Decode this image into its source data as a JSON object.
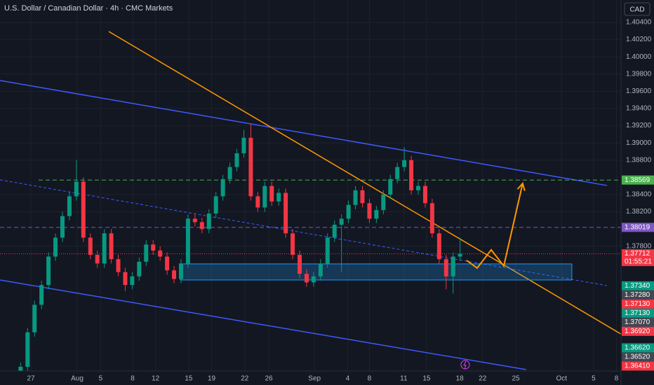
{
  "chart_data": {
    "type": "candlestick",
    "title": "U.S. Dollar / Canadian Dollar · 4h · CMC Markets",
    "currency": "CAD",
    "up_color": "#089981",
    "down_color": "#f23645",
    "xlim": [
      -2.7,
      51.6
    ],
    "ylim": [
      1.36351,
      1.4066
    ],
    "x": [
      -0.9,
      -0.29,
      0.32,
      0.93,
      1.54,
      2.15,
      2.76,
      3.37,
      3.98,
      4.59,
      5.2,
      5.81,
      6.42,
      7.03,
      7.64,
      8.25,
      8.86,
      9.47,
      10.08,
      10.69,
      11.3,
      11.91,
      12.52,
      13.13,
      13.74,
      14.35,
      14.96,
      15.57,
      16.18,
      16.79,
      17.4,
      18.01,
      18.62,
      19.23,
      19.84,
      20.45,
      21.06,
      21.67,
      22.28,
      22.89,
      23.5,
      24.11,
      24.72,
      25.33,
      25.94,
      26.55,
      27.16,
      27.77,
      28.38,
      28.99,
      29.6,
      30.21,
      30.82,
      31.43,
      32.04,
      32.65,
      33.26,
      33.87,
      34.48,
      35.09,
      35.7,
      36.31,
      36.92,
      37.53
    ],
    "open": [
      1.3632,
      1.364,
      1.368,
      1.3712,
      1.3735,
      1.3768,
      1.379,
      1.3815,
      1.3838,
      1.3855,
      1.379,
      1.377,
      1.376,
      1.3795,
      1.3765,
      1.375,
      1.3735,
      1.3745,
      1.3762,
      1.3782,
      1.3775,
      1.3768,
      1.3752,
      1.3742,
      1.376,
      1.3812,
      1.3808,
      1.38,
      1.3818,
      1.3838,
      1.3858,
      1.3872,
      1.3888,
      1.3906,
      1.3838,
      1.3825,
      1.385,
      1.3832,
      1.3842,
      1.3795,
      1.377,
      1.3748,
      1.3738,
      1.3745,
      1.376,
      1.379,
      1.3805,
      1.3812,
      1.3828,
      1.3845,
      1.383,
      1.3812,
      1.3822,
      1.384,
      1.3858,
      1.3872,
      1.388,
      1.3845,
      1.385,
      1.383,
      1.3795,
      1.3765,
      1.3745,
      1.3768
    ],
    "high": [
      1.3645,
      1.3685,
      1.3717,
      1.374,
      1.3773,
      1.3795,
      1.382,
      1.3843,
      1.388,
      1.386,
      1.3795,
      1.3775,
      1.38,
      1.38,
      1.377,
      1.3755,
      1.375,
      1.3767,
      1.3787,
      1.3787,
      1.378,
      1.3773,
      1.3757,
      1.3765,
      1.3817,
      1.3817,
      1.3813,
      1.3823,
      1.3843,
      1.3863,
      1.3877,
      1.3893,
      1.3915,
      1.3922,
      1.3843,
      1.3855,
      1.3855,
      1.3847,
      1.3847,
      1.38,
      1.3775,
      1.3753,
      1.375,
      1.3765,
      1.3795,
      1.381,
      1.3817,
      1.3833,
      1.385,
      1.385,
      1.3835,
      1.3827,
      1.3845,
      1.3863,
      1.3877,
      1.3895,
      1.3885,
      1.3855,
      1.3855,
      1.3835,
      1.38,
      1.377,
      1.3773,
      1.379
    ],
    "low": [
      1.3627,
      1.3635,
      1.3675,
      1.3707,
      1.373,
      1.3763,
      1.3785,
      1.381,
      1.3833,
      1.3785,
      1.3765,
      1.3755,
      1.3755,
      1.376,
      1.3745,
      1.3728,
      1.373,
      1.374,
      1.3757,
      1.377,
      1.3763,
      1.3747,
      1.3737,
      1.3737,
      1.3755,
      1.3803,
      1.3795,
      1.3795,
      1.3813,
      1.3833,
      1.3853,
      1.3867,
      1.3883,
      1.3833,
      1.382,
      1.382,
      1.3827,
      1.3827,
      1.379,
      1.3765,
      1.3743,
      1.3733,
      1.3733,
      1.374,
      1.3755,
      1.3785,
      1.375,
      1.3807,
      1.3823,
      1.3825,
      1.3807,
      1.3807,
      1.3817,
      1.3835,
      1.3853,
      1.3867,
      1.384,
      1.384,
      1.3825,
      1.379,
      1.376,
      1.373,
      1.3725,
      1.3763
    ],
    "close": [
      1.364,
      1.368,
      1.3712,
      1.3735,
      1.3768,
      1.379,
      1.3815,
      1.3838,
      1.3855,
      1.379,
      1.377,
      1.376,
      1.3795,
      1.3765,
      1.375,
      1.3735,
      1.3745,
      1.3762,
      1.3782,
      1.3775,
      1.3768,
      1.3752,
      1.3742,
      1.376,
      1.3812,
      1.3808,
      1.38,
      1.3818,
      1.3838,
      1.3858,
      1.3872,
      1.3888,
      1.3906,
      1.3838,
      1.3825,
      1.385,
      1.3832,
      1.3842,
      1.3795,
      1.377,
      1.3748,
      1.3738,
      1.3745,
      1.376,
      1.379,
      1.3805,
      1.3812,
      1.3828,
      1.3845,
      1.383,
      1.3812,
      1.3822,
      1.384,
      1.3858,
      1.3872,
      1.388,
      1.3845,
      1.385,
      1.383,
      1.3795,
      1.3765,
      1.3745,
      1.3768,
      1.37712
    ],
    "yticks": [
      {
        "value": 1.404,
        "label": "1.40400"
      },
      {
        "value": 1.402,
        "label": "1.40200"
      },
      {
        "value": 1.4,
        "label": "1.40000"
      },
      {
        "value": 1.398,
        "label": "1.39800"
      },
      {
        "value": 1.396,
        "label": "1.39600"
      },
      {
        "value": 1.394,
        "label": "1.39400"
      },
      {
        "value": 1.392,
        "label": "1.39200"
      },
      {
        "value": 1.39,
        "label": "1.39000"
      },
      {
        "value": 1.388,
        "label": "1.38800"
      },
      {
        "value": 1.384,
        "label": "1.38400"
      },
      {
        "value": 1.382,
        "label": "1.38200"
      },
      {
        "value": 1.378,
        "label": "1.37800"
      }
    ],
    "xticks": [
      {
        "value": 0,
        "label": "27"
      },
      {
        "value": 4.05,
        "label": "Aug"
      },
      {
        "value": 6.1,
        "label": "5"
      },
      {
        "value": 8.9,
        "label": "8"
      },
      {
        "value": 10.9,
        "label": "12"
      },
      {
        "value": 13.8,
        "label": "15"
      },
      {
        "value": 15.8,
        "label": "19"
      },
      {
        "value": 18.7,
        "label": "22"
      },
      {
        "value": 20.8,
        "label": "26"
      },
      {
        "value": 24.8,
        "label": "Sep"
      },
      {
        "value": 27.7,
        "label": "4"
      },
      {
        "value": 29.6,
        "label": "8"
      },
      {
        "value": 32.6,
        "label": "11"
      },
      {
        "value": 34.6,
        "label": "15"
      },
      {
        "value": 37.5,
        "label": "18"
      },
      {
        "value": 39.5,
        "label": "22"
      },
      {
        "value": 42.4,
        "label": "25"
      },
      {
        "value": 46.4,
        "label": "Oct"
      },
      {
        "value": 49.2,
        "label": "5"
      },
      {
        "value": 51.2,
        "label": "8"
      }
    ],
    "grid": true,
    "price_tags": [
      {
        "value": 1.38569,
        "label": "1.38569",
        "color": "#4caf50"
      },
      {
        "value": 1.38019,
        "label": "1.38019",
        "color": "#7e57c2"
      },
      {
        "value": 1.37712,
        "label": "1.37712",
        "color": "#f23645",
        "countdown": "01:55:21"
      },
      {
        "value": 1.3734,
        "label": "1.37340",
        "color": "#089981"
      },
      {
        "value": 1.3728,
        "label": "1.37280",
        "color": "#434651"
      },
      {
        "value": 1.3713,
        "label": "1.37130",
        "color": "#f23645"
      },
      {
        "value": 1.3713,
        "label": "1.37130",
        "color": "#089981"
      },
      {
        "value": 1.3707,
        "label": "1.37070",
        "color": "#434651"
      },
      {
        "value": 1.3692,
        "label": "1.36920",
        "color": "#f23645"
      },
      {
        "value": 1.3662,
        "label": "1.36620",
        "color": "#089981"
      },
      {
        "value": 1.3652,
        "label": "1.36520",
        "color": "#434651"
      },
      {
        "value": 1.3641,
        "label": "1.36410",
        "color": "#f23645"
      }
    ],
    "drawings": [
      {
        "kind": "line",
        "color": "#3d5afe",
        "points": [
          [
            -2.7,
            1.39725
          ],
          [
            50.37,
            1.38506
          ]
        ]
      },
      {
        "kind": "line",
        "color": "#3d5afe",
        "points": [
          [
            -2.7,
            1.37408
          ],
          [
            43.31,
            1.36367
          ]
        ]
      },
      {
        "kind": "line",
        "color": "#ff9800",
        "points": [
          [
            6.81,
            1.40294
          ],
          [
            54.48,
            1.36554
          ]
        ]
      },
      {
        "kind": "dashed",
        "color": "#3d5afe",
        "points": [
          [
            -2.7,
            1.38571
          ],
          [
            50.37,
            1.37343
          ]
        ]
      },
      {
        "kind": "rect",
        "color": "#2196f3",
        "points": [
          [
            13.07,
            1.37595
          ],
          [
            47.3,
            1.37408
          ]
        ]
      },
      {
        "kind": "hline",
        "color": "#4caf50",
        "points": [
          [
            0.67,
            1.38569
          ]
        ]
      },
      {
        "kind": "hline",
        "color": "#7e57c2",
        "points": [
          [
            -2.7,
            1.38019
          ]
        ]
      },
      {
        "kind": "arrow",
        "color": "#ff9800",
        "points": [
          [
            38.1,
            1.37636
          ],
          [
            39.02,
            1.37546
          ],
          [
            40.25,
            1.37758
          ],
          [
            41.35,
            1.37571
          ],
          [
            43.0,
            1.3853
          ]
        ]
      }
    ]
  }
}
